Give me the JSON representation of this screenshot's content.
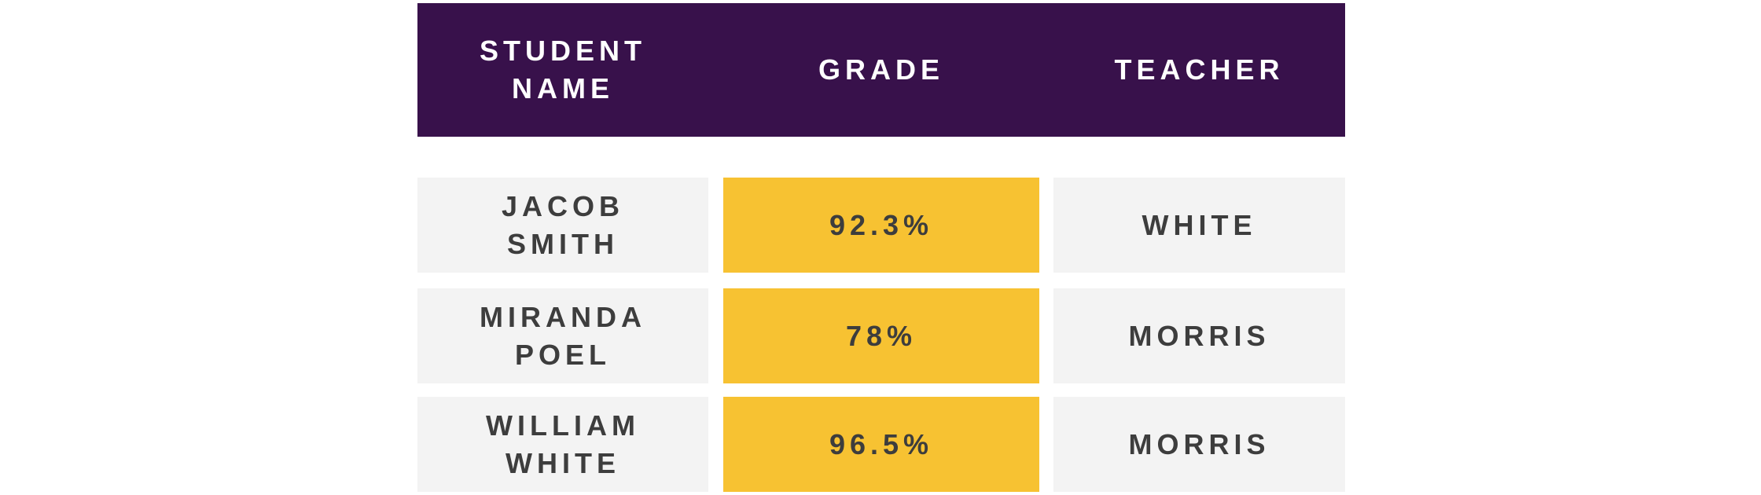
{
  "header": {
    "student_name": "STUDENT\nNAME",
    "grade": "GRADE",
    "teacher": "TEACHER"
  },
  "rows": [
    {
      "student_name": "JACOB\nSMITH",
      "grade": "92.3%",
      "teacher": "WHITE"
    },
    {
      "student_name": "MIRANDA\nPOEL",
      "grade": "78%",
      "teacher": "MORRIS"
    },
    {
      "student_name": "WILLIAM\nWHITE",
      "grade": "96.5%",
      "teacher": "MORRIS"
    }
  ],
  "colors": {
    "header_bg": "#38114b",
    "header_text": "#ffffff",
    "cell_bg": "#f3f3f3",
    "grade_bg": "#f7c232",
    "cell_text": "#3d3d3d"
  }
}
